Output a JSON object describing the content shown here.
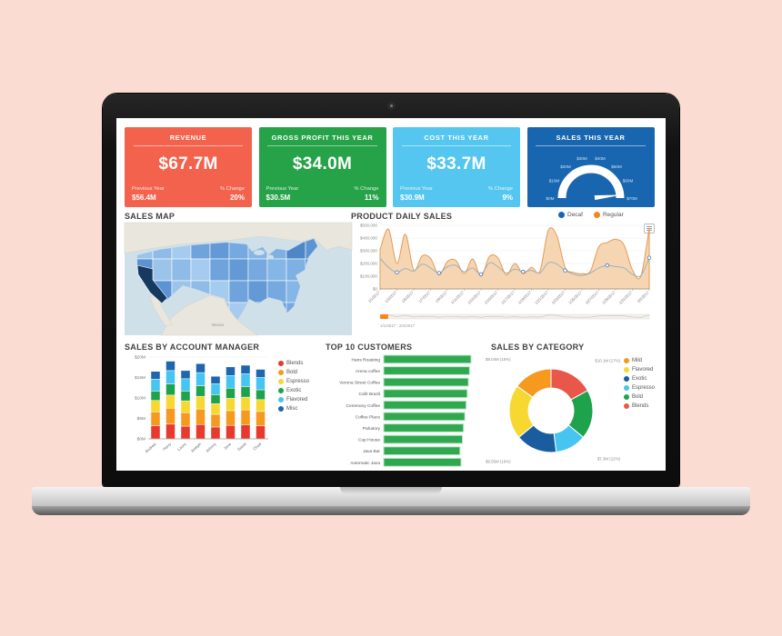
{
  "dashboard": {
    "cards": [
      {
        "title": "REVENUE",
        "value": "$67.7M",
        "prev_label": "Previous Year",
        "prev_value": "$56.4M",
        "change_label": "% Change",
        "change_value": "20%",
        "color": "#f2624c"
      },
      {
        "title": "GROSS PROFIT THIS YEAR",
        "value": "$34.0M",
        "prev_label": "Previous Year",
        "prev_value": "$30.5M",
        "change_label": "% Change",
        "change_value": "11%",
        "color": "#26a248"
      },
      {
        "title": "COST THIS YEAR",
        "value": "$33.7M",
        "prev_label": "Previous Year",
        "prev_value": "$30.9M",
        "change_label": "% Change",
        "change_value": "9%",
        "color": "#54c6ef"
      },
      {
        "title": "SALES THIS YEAR",
        "color": "#1866b0"
      }
    ],
    "sections": {
      "sales_map": "SALES MAP",
      "daily_sales": "PRODUCT DAILY SALES",
      "account_manager": "SALES BY ACCOUNT MANAGER",
      "top_customers": "TOP 10 CUSTOMERS",
      "category": "SALES BY CATEGORY"
    }
  },
  "chart_data": [
    {
      "id": "sales_map",
      "type": "heatmap",
      "title": "SALES MAP",
      "region": "United States",
      "highlight_state": "California",
      "ocean_color": "#cfe0e8",
      "neighbor_color": "#e9e6de",
      "highlight_color": "#16395f",
      "state_colors": [
        "#9cc3ea",
        "#6ea3dc",
        "#84b6e6",
        "#5b93d4",
        "#a5cbee",
        "#75a9df",
        "#4f86c6",
        "#8fbbe8",
        "#639ad6",
        "#7fb0e3"
      ],
      "map_label": "Mexico"
    },
    {
      "id": "daily_sales",
      "type": "area",
      "title": "PRODUCT DAILY SALES",
      "legend": [
        {
          "label": "Decaf",
          "color": "#1565c0"
        },
        {
          "label": "Regular",
          "color": "#f5861f"
        }
      ],
      "x": [
        "1/1/2017",
        "1/2/2017",
        "1/3/2017",
        "1/4/2017",
        "1/5/2017",
        "1/6/2017",
        "1/7/2017",
        "1/8/2017",
        "1/9/2017",
        "1/10/2017",
        "1/11/2017",
        "1/12/2017",
        "1/13/2017",
        "1/14/2017",
        "1/15/2017",
        "1/16/2017",
        "1/17/2017",
        "1/18/2017",
        "1/19/2017",
        "1/20/2017",
        "1/21/2017",
        "1/22/2017",
        "1/23/2017",
        "1/24/2017",
        "1/25/2017",
        "1/26/2017",
        "1/27/2017",
        "1/28/2017",
        "1/29/2017",
        "1/30/2017",
        "1/31/2017",
        "2/1/2017",
        "2/2/2017"
      ],
      "series": [
        {
          "name": "Regular",
          "fill": "#f6d4ae",
          "stroke": "#e59a55",
          "values": [
            310000,
            470000,
            200000,
            430000,
            150000,
            260000,
            240000,
            110000,
            215000,
            225000,
            120000,
            235000,
            100000,
            255000,
            245000,
            110000,
            200000,
            120000,
            170000,
            140000,
            460000,
            420000,
            170000,
            130000,
            120000,
            140000,
            330000,
            365000,
            390000,
            345000,
            150000,
            100000,
            480000
          ]
        },
        {
          "name": "Decaf",
          "stroke": "#9fb0be",
          "marker": "#3f7ec0",
          "values": [
            240000,
            170000,
            130000,
            160000,
            140000,
            195000,
            165000,
            125000,
            175000,
            185000,
            135000,
            165000,
            115000,
            205000,
            175000,
            125000,
            155000,
            135000,
            145000,
            125000,
            205000,
            195000,
            145000,
            115000,
            105000,
            125000,
            165000,
            185000,
            175000,
            165000,
            115000,
            105000,
            245000
          ]
        }
      ],
      "ylim": [
        0,
        500000
      ],
      "yticks_labels": [
        "$0",
        "$100,000",
        "$200,000",
        "$300,000",
        "$400,000",
        "$500,000"
      ],
      "range_label": "1/1/2017 - 2/2/2017"
    },
    {
      "id": "account_manager",
      "type": "bar",
      "subtype": "stacked",
      "title": "SALES BY ACCOUNT MANAGER",
      "categories": [
        "Andrew",
        "Harry",
        "Laura",
        "Joseph",
        "Johnny",
        "Jane",
        "David",
        "Chad"
      ],
      "series": [
        {
          "name": "Blends",
          "color": "#e8392e",
          "values": [
            3.2,
            3.6,
            3.1,
            3.5,
            2.9,
            3.3,
            3.4,
            3.2
          ]
        },
        {
          "name": "Bold",
          "color": "#f5991f",
          "values": [
            3.4,
            3.9,
            3.3,
            3.8,
            3.1,
            3.6,
            3.7,
            3.5
          ]
        },
        {
          "name": "Espresso",
          "color": "#f7d831",
          "values": [
            2.8,
            3.2,
            2.9,
            3.1,
            2.6,
            3.0,
            3.1,
            2.9
          ]
        },
        {
          "name": "Exotic",
          "color": "#1fa24c",
          "values": [
            2.3,
            2.7,
            2.4,
            2.6,
            2.2,
            2.5,
            2.6,
            2.4
          ]
        },
        {
          "name": "Flavored",
          "color": "#45c5f0",
          "values": [
            2.9,
            3.3,
            3.0,
            3.2,
            2.7,
            3.1,
            3.1,
            3.0
          ]
        },
        {
          "name": "Misc",
          "color": "#1e66ad",
          "values": [
            1.9,
            2.3,
            2.0,
            2.2,
            1.8,
            2.1,
            2.1,
            2.0
          ]
        }
      ],
      "ylim": [
        0,
        20
      ],
      "yticks_labels": [
        "$0M",
        "$5M",
        "$10M",
        "$15M",
        "$20M"
      ]
    },
    {
      "id": "top_customers",
      "type": "bar",
      "subtype": "horizontal",
      "title": "TOP 10 CUSTOMERS",
      "color": "#2fa84f",
      "categories": [
        "Hans Roasting",
        "Arena coffee",
        "Verona Street Coffee",
        "Café Brazil",
        "Ceremony Coffee",
        "Coffee Place",
        "Pahatory",
        "Cup House",
        "Java Bar",
        "Automatic Java"
      ],
      "values": [
        985,
        968,
        955,
        942,
        930,
        915,
        900,
        888,
        860,
        872
      ],
      "unit": "USD thousands (bars unlabeled in UI)"
    },
    {
      "id": "sales_by_category",
      "type": "pie",
      "subtype": "donut",
      "title": "SALES BY CATEGORY",
      "slices": [
        {
          "name": "Blends",
          "color": "#e8574a",
          "pct": 17,
          "label": "$10.1M (17%)",
          "show_label": true
        },
        {
          "name": "Bold",
          "color": "#1fa24c",
          "pct": 19,
          "label": "$11.4M (19%)",
          "show_label": false
        },
        {
          "name": "Espresso",
          "color": "#45c5f0",
          "pct": 12,
          "label": "$7.3M (12%)",
          "show_label": true
        },
        {
          "name": "Exotic",
          "color": "#1a5d9e",
          "pct": 16,
          "label": "$9.55M (16%)",
          "show_label": true
        },
        {
          "name": "Flavored",
          "color": "#f7d831",
          "pct": 21,
          "label": "$12.6M (21%)",
          "show_label": false
        },
        {
          "name": "Mild",
          "color": "#f5991f",
          "pct": 15,
          "label": "$9.04M (15%)",
          "show_label": true
        }
      ]
    },
    {
      "id": "sales_gauge",
      "type": "gauge",
      "title": "SALES THIS YEAR",
      "min": 0,
      "max": 70,
      "value": 67.7,
      "tick_labels": [
        "$0M",
        "$10M",
        "$20M",
        "$30M",
        "$40M",
        "$50M",
        "$60M",
        "$70M"
      ],
      "label_color": "#cfe3f5"
    }
  ]
}
